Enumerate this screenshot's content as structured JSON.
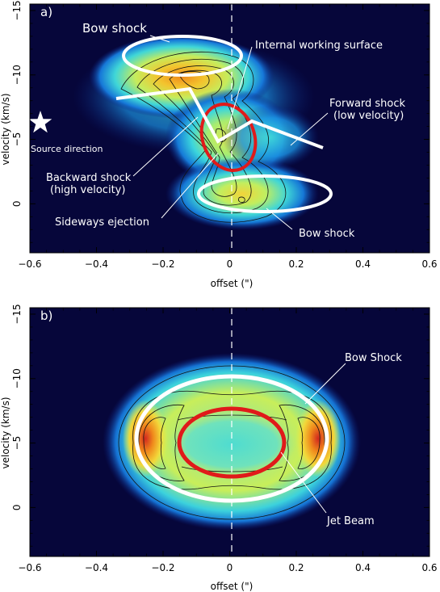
{
  "chart_data": [
    {
      "panel_label": "a)",
      "type": "heatmap",
      "xlabel": "offset (\")",
      "ylabel": "velocity (km/s)",
      "xlim": [
        -0.6,
        0.6
      ],
      "ylim": [
        3.8,
        -15.5
      ],
      "x_ticks": [
        -0.6,
        -0.4,
        -0.2,
        0,
        0.2,
        0.4,
        0.6
      ],
      "x_tick_labels": [
        "−0.6",
        "−0.4",
        "−0.2",
        "0",
        "0.2",
        "0.4",
        "0.6"
      ],
      "y_ticks": [
        0,
        -5,
        -10,
        -15
      ],
      "y_tick_labels": [
        "0",
        "−5",
        "−10",
        "−15"
      ],
      "emission_blobs": [
        {
          "x": -0.12,
          "y": -10.3,
          "amp": 1.0
        },
        {
          "x": -0.02,
          "y": -5.0,
          "amp": 0.85
        },
        {
          "x": 0.05,
          "y": -0.5,
          "amp": 0.75
        },
        {
          "x": 0.12,
          "y": -6.2,
          "amp": 0.5
        }
      ],
      "annotations": {
        "bow_shock_top": "Bow shock",
        "internal_working_surface": "Internal working surface",
        "forward_shock": "Forward shock",
        "forward_shock_sub": "(low velocity)",
        "backward_shock": "Backward shock",
        "backward_shock_sub": "(high velocity)",
        "sideways_ejection": "Sideways ejection",
        "bow_shock_bottom": "Bow shock",
        "source_direction": "Source direction"
      }
    },
    {
      "panel_label": "b)",
      "type": "heatmap",
      "xlabel": "offset (\")",
      "ylabel": "velocity (km/s)",
      "xlim": [
        -0.6,
        0.6
      ],
      "ylim": [
        3.8,
        -15.5
      ],
      "x_ticks": [
        -0.6,
        -0.4,
        -0.2,
        0,
        0.2,
        0.4,
        0.6
      ],
      "x_tick_labels": [
        "−0.6",
        "−0.4",
        "−0.2",
        "0",
        "0.2",
        "0.4",
        "0.6"
      ],
      "y_ticks": [
        0,
        -5,
        -10,
        -15
      ],
      "y_tick_labels": [
        "0",
        "−5",
        "−10",
        "−15"
      ],
      "emission_peaks": [
        {
          "x": -0.26,
          "y": -5.5,
          "amp": 1.0
        },
        {
          "x": 0.26,
          "y": -5.5,
          "amp": 1.0
        }
      ],
      "annotations": {
        "bow_shock": "Bow Shock",
        "jet_beam": "Jet Beam"
      }
    }
  ],
  "colors": {
    "background": "#06063a",
    "low": "#0a2a9a",
    "mid_low": "#22b6e6",
    "mid": "#58e0c8",
    "mid_high": "#e6f04a",
    "high": "#f59a1e",
    "peak": "#d2281e",
    "annotation_white": "#ffffff",
    "annotation_red": "#e01a1a"
  }
}
